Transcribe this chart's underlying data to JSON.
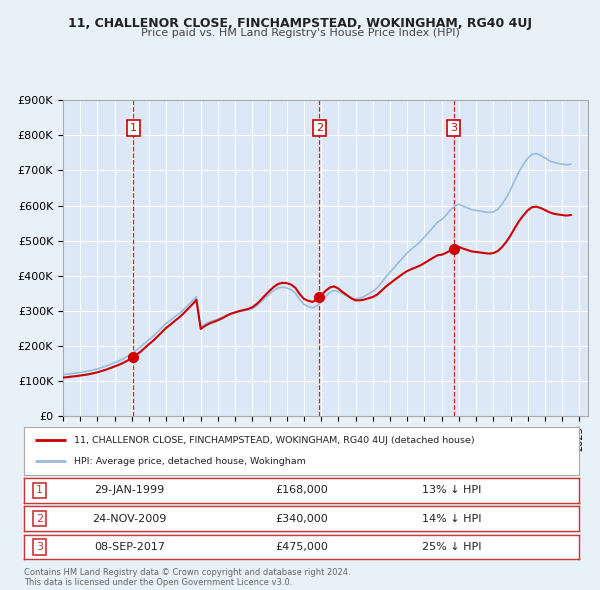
{
  "title_line1": "11, CHALLENOR CLOSE, FINCHAMPSTEAD, WOKINGHAM, RG40 4UJ",
  "title_line2": "Price paid vs. HM Land Registry's House Price Index (HPI)",
  "background_color": "#e8f0f8",
  "plot_bg_color": "#dce8f5",
  "grid_color": "#ffffff",
  "sale_color": "#cc0000",
  "hpi_color": "#99bbdd",
  "sale_label": "11, CHALLENOR CLOSE, FINCHAMPSTEAD, WOKINGHAM, RG40 4UJ (detached house)",
  "hpi_label": "HPI: Average price, detached house, Wokingham",
  "ylim": [
    0,
    900000
  ],
  "yticks": [
    0,
    100000,
    200000,
    300000,
    400000,
    500000,
    600000,
    700000,
    800000,
    900000
  ],
  "ytick_labels": [
    "£0",
    "£100K",
    "£200K",
    "£300K",
    "£400K",
    "£500K",
    "£600K",
    "£700K",
    "£800K",
    "£900K"
  ],
  "xmin": 1995.0,
  "xmax": 2025.5,
  "sale_dates": [
    1999.08,
    2009.9,
    2017.69
  ],
  "sale_prices": [
    168000,
    340000,
    475000
  ],
  "sale_numbers": [
    "1",
    "2",
    "3"
  ],
  "annotation_date_strs": [
    "29-JAN-1999",
    "24-NOV-2009",
    "08-SEP-2017"
  ],
  "annotation_prices": [
    "£168,000",
    "£340,000",
    "£475,000"
  ],
  "annotation_hpi": [
    "13% ↓ HPI",
    "14% ↓ HPI",
    "25% ↓ HPI"
  ],
  "footer_text": "Contains HM Land Registry data © Crown copyright and database right 2024.\nThis data is licensed under the Open Government Licence v3.0.",
  "hpi_x": [
    1995.0,
    1995.25,
    1995.5,
    1995.75,
    1996.0,
    1996.25,
    1996.5,
    1996.75,
    1997.0,
    1997.25,
    1997.5,
    1997.75,
    1998.0,
    1998.25,
    1998.5,
    1998.75,
    1999.0,
    1999.25,
    1999.5,
    1999.75,
    2000.0,
    2000.25,
    2000.5,
    2000.75,
    2001.0,
    2001.25,
    2001.5,
    2001.75,
    2002.0,
    2002.25,
    2002.5,
    2002.75,
    2003.0,
    2003.25,
    2003.5,
    2003.75,
    2004.0,
    2004.25,
    2004.5,
    2004.75,
    2005.0,
    2005.25,
    2005.5,
    2005.75,
    2006.0,
    2006.25,
    2006.5,
    2006.75,
    2007.0,
    2007.25,
    2007.5,
    2007.75,
    2008.0,
    2008.25,
    2008.5,
    2008.75,
    2009.0,
    2009.25,
    2009.5,
    2009.75,
    2010.0,
    2010.25,
    2010.5,
    2010.75,
    2011.0,
    2011.25,
    2011.5,
    2011.75,
    2012.0,
    2012.25,
    2012.5,
    2012.75,
    2013.0,
    2013.25,
    2013.5,
    2013.75,
    2014.0,
    2014.25,
    2014.5,
    2014.75,
    2015.0,
    2015.25,
    2015.5,
    2015.75,
    2016.0,
    2016.25,
    2016.5,
    2016.75,
    2017.0,
    2017.25,
    2017.5,
    2017.75,
    2018.0,
    2018.25,
    2018.5,
    2018.75,
    2019.0,
    2019.25,
    2019.5,
    2019.75,
    2020.0,
    2020.25,
    2020.5,
    2020.75,
    2021.0,
    2021.25,
    2021.5,
    2021.75,
    2022.0,
    2022.25,
    2022.5,
    2022.75,
    2023.0,
    2023.25,
    2023.5,
    2023.75,
    2024.0,
    2024.25,
    2024.5
  ],
  "hpi_y": [
    118000,
    119000,
    121000,
    122000,
    124000,
    126000,
    128000,
    131000,
    134000,
    138000,
    142000,
    147000,
    152000,
    157000,
    163000,
    170000,
    178000,
    187000,
    196000,
    207000,
    218000,
    228000,
    240000,
    252000,
    264000,
    273000,
    283000,
    292000,
    303000,
    315000,
    327000,
    340000,
    254000,
    262000,
    268000,
    272000,
    276000,
    281000,
    287000,
    292000,
    295000,
    298000,
    300000,
    302000,
    306000,
    314000,
    325000,
    337000,
    348000,
    358000,
    365000,
    367000,
    365000,
    360000,
    350000,
    332000,
    318000,
    312000,
    308000,
    314000,
    325000,
    340000,
    352000,
    358000,
    355000,
    348000,
    342000,
    336000,
    333000,
    336000,
    341000,
    348000,
    355000,
    365000,
    380000,
    396000,
    410000,
    424000,
    438000,
    452000,
    465000,
    476000,
    486000,
    497000,
    510000,
    524000,
    538000,
    552000,
    560000,
    572000,
    587000,
    598000,
    604000,
    598000,
    593000,
    588000,
    586000,
    584000,
    582000,
    580000,
    582000,
    589000,
    603000,
    622000,
    645000,
    672000,
    697000,
    717000,
    735000,
    746000,
    748000,
    743000,
    736000,
    728000,
    723000,
    720000,
    718000,
    716000,
    718000
  ]
}
